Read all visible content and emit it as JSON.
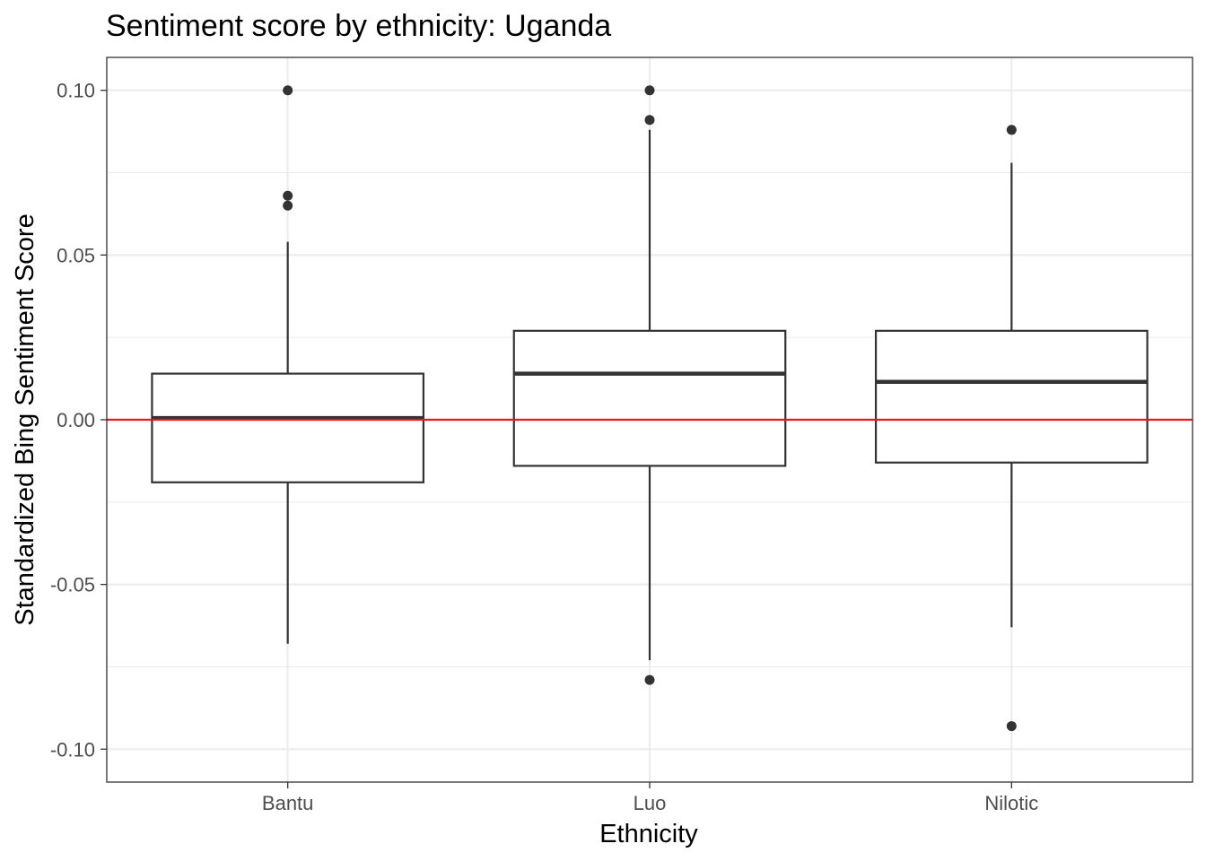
{
  "chart_data": {
    "type": "box",
    "title": "Sentiment score by ethnicity: Uganda",
    "xlabel": "Ethnicity",
    "ylabel": "Standardized Bing Sentiment Score",
    "categories": [
      "Bantu",
      "Luo",
      "Nilotic"
    ],
    "ylim": [
      -0.11,
      0.11
    ],
    "y_ticks": [
      -0.1,
      -0.05,
      0.0,
      0.05,
      0.1
    ],
    "y_tick_labels": [
      "-0.10",
      "-0.05",
      "0.00",
      "0.05",
      "0.10"
    ],
    "boxes": [
      {
        "category": "Bantu",
        "whisker_low": -0.068,
        "q1": -0.019,
        "median": 0.0005,
        "q3": 0.014,
        "whisker_high": 0.054,
        "outliers": [
          0.1,
          0.068,
          0.065
        ]
      },
      {
        "category": "Luo",
        "whisker_low": -0.073,
        "q1": -0.014,
        "median": 0.014,
        "q3": 0.027,
        "whisker_high": 0.088,
        "outliers": [
          0.1,
          0.091,
          -0.079
        ]
      },
      {
        "category": "Nilotic",
        "whisker_low": -0.063,
        "q1": -0.013,
        "median": 0.0115,
        "q3": 0.027,
        "whisker_high": 0.078,
        "outliers": [
          0.088,
          -0.093
        ]
      }
    ],
    "reference_line": {
      "y": 0.0,
      "color": "#dd1c1c"
    },
    "box_color": "#333333",
    "grid": true,
    "legend": "none"
  }
}
